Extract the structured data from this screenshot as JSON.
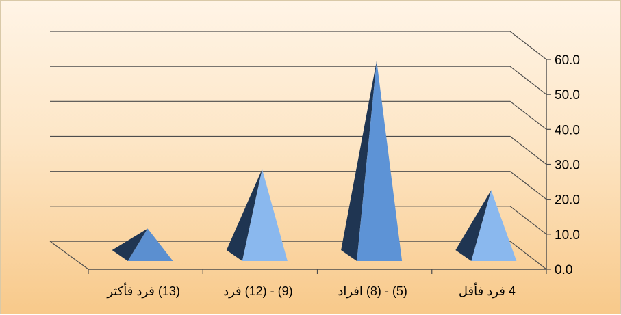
{
  "chart_data": {
    "type": "bar",
    "style": "3d-pyramid",
    "title": "",
    "xlabel": "",
    "ylabel": "",
    "categories": [
      "4 فرد فأقل",
      "(5) - (8) افراد",
      "(9) - (12) فرد",
      "(13) فرد فأكثر"
    ],
    "values": [
      19.5,
      56.5,
      25.5,
      8.5
    ],
    "ylim": [
      0,
      60
    ],
    "yticks": [
      "0.0",
      "10.0",
      "20.0",
      "30.0",
      "40.0",
      "50.0",
      "60.0"
    ],
    "grid": true,
    "legend": "none",
    "axis_side": "right",
    "colors": {
      "pyramid_light": "#8ab8ee",
      "pyramid_dark": "#1f3552",
      "tall_front": "#5d93d6",
      "small_front": "#5b8fd0",
      "gridline": "#4d4d4d"
    }
  }
}
